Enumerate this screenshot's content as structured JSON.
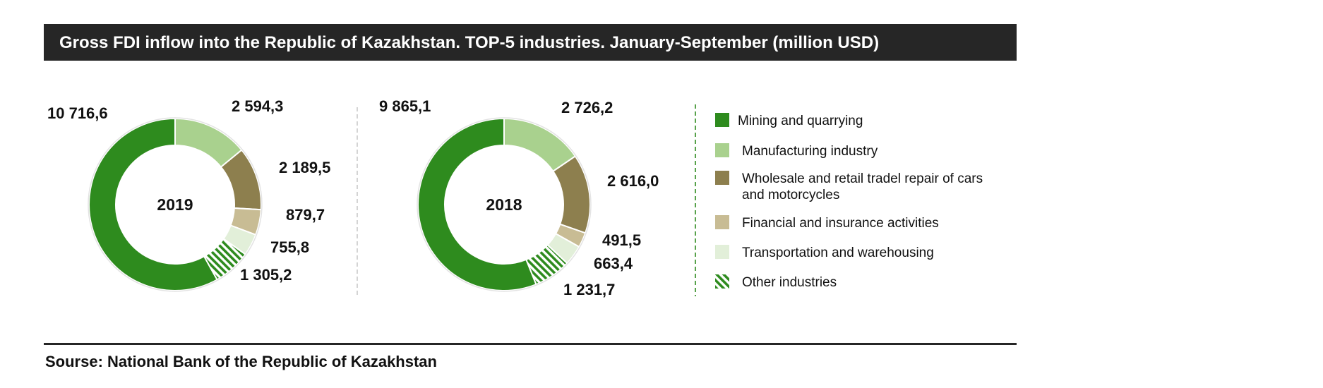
{
  "title": "Gross  FDI inflow into the Republic of Kazakhstan. TOP-5 industries.  January-September (million USD)",
  "source": "Sourse: National Bank of the Republic  of Kazakhstan",
  "chart_data": {
    "type": "pie",
    "variant": "donut",
    "categories": [
      "Mining and quarrying",
      "Manufacturing industry",
      "Wholesale and retail tradel repair of cars and motorcycles",
      "Financial and insurance activities",
      "Transportation and warehousing",
      "Other industries"
    ],
    "colors": [
      "#2e8b1e",
      "#a9d18e",
      "#8d7f4e",
      "#c8bc94",
      "#e2efd9",
      "#2e8b1e"
    ],
    "patterns": [
      "solid",
      "solid",
      "solid",
      "solid",
      "solid",
      "hatched"
    ],
    "legend_position": "right",
    "charts": [
      {
        "center_label": "2019",
        "values": [
          10716.6,
          2594.3,
          2189.5,
          879.7,
          755.8,
          1305.2
        ],
        "labels": [
          "10 716,6",
          "2 594,3",
          "2 189,5",
          "879,7",
          "755,8",
          "1 305,2"
        ]
      },
      {
        "center_label": "2018",
        "values": [
          9865.1,
          2726.2,
          2616.0,
          491.5,
          663.4,
          1231.7
        ],
        "labels": [
          "9 865,1",
          "2 726,2",
          "2 616,0",
          "491,5",
          "663,4",
          "1 231,7"
        ]
      }
    ]
  }
}
